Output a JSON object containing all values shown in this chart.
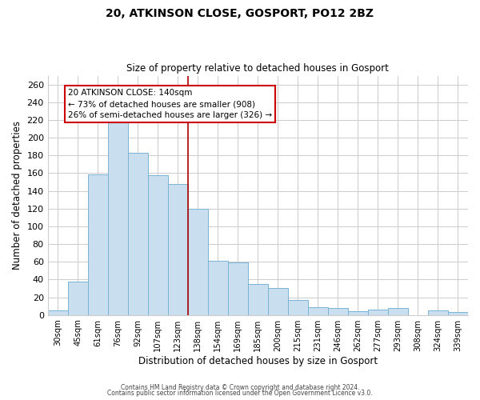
{
  "title": "20, ATKINSON CLOSE, GOSPORT, PO12 2BZ",
  "subtitle": "Size of property relative to detached houses in Gosport",
  "xlabel": "Distribution of detached houses by size in Gosport",
  "ylabel": "Number of detached properties",
  "categories": [
    "30sqm",
    "45sqm",
    "61sqm",
    "76sqm",
    "92sqm",
    "107sqm",
    "123sqm",
    "138sqm",
    "154sqm",
    "169sqm",
    "185sqm",
    "200sqm",
    "215sqm",
    "231sqm",
    "246sqm",
    "262sqm",
    "277sqm",
    "293sqm",
    "308sqm",
    "324sqm",
    "339sqm"
  ],
  "values": [
    5,
    38,
    159,
    219,
    183,
    158,
    148,
    120,
    61,
    59,
    35,
    30,
    17,
    9,
    8,
    4,
    6,
    8,
    0,
    5,
    3
  ],
  "bar_color": "#c9dff0",
  "bar_edge_color": "#7ab3d3",
  "vline_index": 7,
  "property_line_label": "20 ATKINSON CLOSE: 140sqm",
  "annotation_line1": "← 73% of detached houses are smaller (908)",
  "annotation_line2": "26% of semi-detached houses are larger (326) →",
  "annotation_box_color": "#ffffff",
  "annotation_box_edge": "#cc0000",
  "vline_color": "#aa0000",
  "ylim": [
    0,
    270
  ],
  "yticks": [
    0,
    20,
    40,
    60,
    80,
    100,
    120,
    140,
    160,
    180,
    200,
    220,
    240,
    260
  ],
  "footer1": "Contains HM Land Registry data © Crown copyright and database right 2024.",
  "footer2": "Contains public sector information licensed under the Open Government Licence v3.0.",
  "background_color": "#ffffff",
  "grid_color": "#cccccc"
}
